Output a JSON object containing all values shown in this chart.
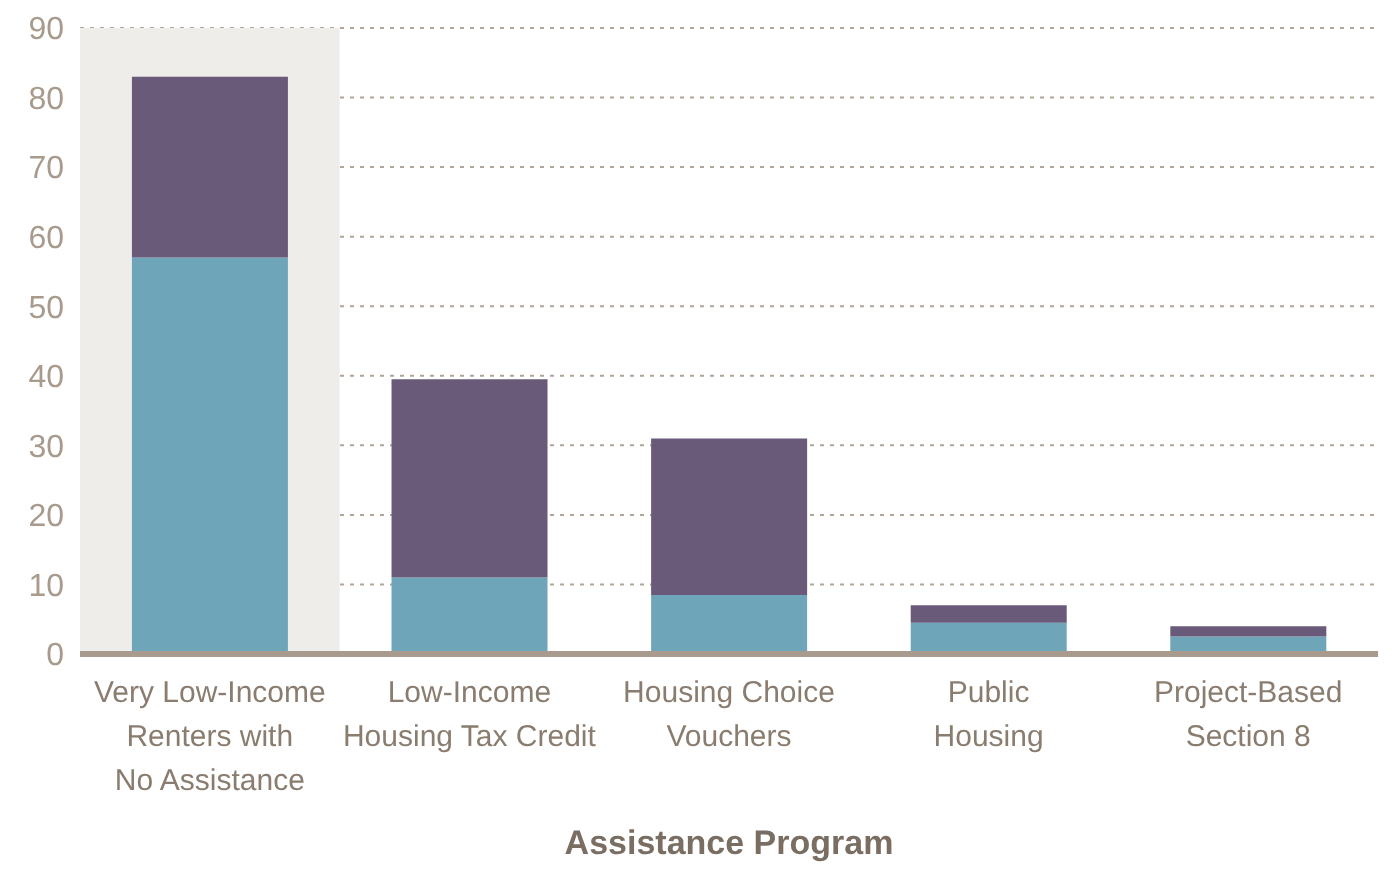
{
  "chart_data": {
    "type": "bar",
    "stacked": true,
    "xlabel": "Assistance Program",
    "categories": [
      "Very Low-Income\nRenters with\nNo Assistance",
      "Low-Income\nHousing Tax Credit",
      "Housing Choice\nVouchers",
      "Public\nHousing",
      "Project-Based\nSection 8"
    ],
    "series": [
      {
        "color": "#6fa5b8",
        "values": [
          57,
          11,
          8.5,
          4.5,
          2.5
        ]
      },
      {
        "color": "#6a5a7a",
        "values": [
          26,
          28.5,
          22.5,
          2.5,
          1.5
        ]
      }
    ],
    "bands": [
      {
        "axis": "x",
        "from": "Very Low-Income\nRenters with\nNo Assistance",
        "to": "Very Low-Income\nRenters with\nNo Assistance",
        "color": "#efede9"
      }
    ],
    "ylim": [
      0,
      90
    ],
    "yticks": [
      0,
      10,
      20,
      30,
      40,
      50,
      60,
      70,
      80,
      90
    ],
    "grid": "y",
    "legend": false
  }
}
